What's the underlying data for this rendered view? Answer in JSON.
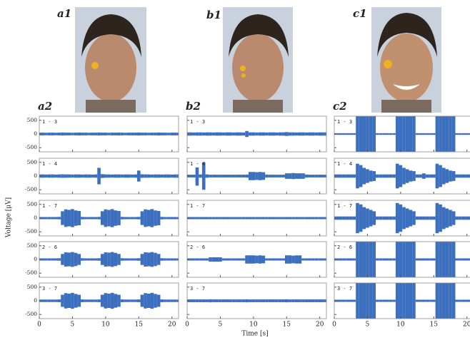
{
  "photo_labels": [
    "a1",
    "b1",
    "c1"
  ],
  "chart_data": [
    {
      "type": "line",
      "title": "a2",
      "ylabel": "Voltage [μV]",
      "xlim": [
        0,
        21
      ],
      "xticks": [
        0,
        5,
        10,
        15,
        20
      ],
      "ylim": [
        -650,
        650
      ],
      "yticks": [
        500,
        0,
        -500
      ],
      "x": [
        0,
        0.5,
        1,
        1.5,
        2,
        2.5,
        3,
        3.5,
        4,
        4.5,
        5,
        5.5,
        6,
        6.5,
        7,
        7.5,
        8,
        8.5,
        9,
        9.5,
        10,
        10.5,
        11,
        11.5,
        12,
        12.5,
        13,
        13.5,
        14,
        14.5,
        15,
        15.5,
        16,
        16.5,
        17,
        17.5,
        18,
        18.5,
        19,
        19.5,
        20,
        20.5,
        21
      ],
      "series": [
        {
          "name": "1 - 3",
          "color": "#3d6fbf",
          "values": [
            50,
            50,
            45,
            50,
            50,
            45,
            50,
            55,
            50,
            50,
            45,
            50,
            55,
            50,
            50,
            45,
            50,
            50,
            55,
            50,
            50,
            45,
            50,
            50,
            55,
            50,
            45,
            50,
            50,
            50,
            55,
            50,
            50,
            45,
            50,
            50,
            55,
            50,
            50,
            45,
            50,
            50,
            50
          ]
        },
        {
          "name": "1 - 4",
          "color": "#3d6fbf",
          "values": [
            60,
            60,
            55,
            60,
            60,
            55,
            60,
            65,
            60,
            60,
            55,
            60,
            60,
            55,
            60,
            60,
            55,
            60,
            300,
            70,
            60,
            60,
            55,
            60,
            60,
            55,
            60,
            60,
            55,
            60,
            200,
            65,
            60,
            60,
            55,
            60,
            60,
            55,
            60,
            60,
            55,
            60,
            60
          ]
        },
        {
          "name": "1 - 7",
          "color": "#3d6fbf",
          "values": [
            40,
            40,
            40,
            40,
            40,
            40,
            45,
            250,
            320,
            300,
            330,
            280,
            260,
            45,
            40,
            40,
            40,
            40,
            45,
            250,
            320,
            300,
            330,
            280,
            260,
            45,
            40,
            40,
            40,
            40,
            45,
            250,
            320,
            300,
            330,
            280,
            260,
            45,
            40,
            40,
            40,
            40,
            40
          ]
        },
        {
          "name": "2 - 6",
          "color": "#3d6fbf",
          "values": [
            40,
            40,
            40,
            40,
            40,
            40,
            45,
            200,
            260,
            250,
            270,
            240,
            200,
            45,
            40,
            40,
            40,
            40,
            45,
            200,
            260,
            250,
            270,
            240,
            200,
            45,
            40,
            40,
            40,
            40,
            45,
            200,
            260,
            250,
            270,
            240,
            200,
            45,
            40,
            40,
            40,
            40,
            40
          ]
        },
        {
          "name": "3 - 7",
          "color": "#3d6fbf",
          "values": [
            45,
            45,
            45,
            45,
            45,
            45,
            50,
            220,
            280,
            260,
            290,
            250,
            220,
            50,
            45,
            45,
            45,
            45,
            50,
            220,
            280,
            260,
            290,
            250,
            220,
            50,
            45,
            45,
            45,
            45,
            50,
            220,
            280,
            260,
            290,
            250,
            220,
            50,
            45,
            45,
            45,
            45,
            45
          ]
        }
      ]
    },
    {
      "type": "line",
      "title": "b2",
      "xlabel": "Time [s]",
      "xlim": [
        0,
        21
      ],
      "xticks": [
        0,
        5,
        10,
        15,
        20
      ],
      "ylim": [
        -650,
        650
      ],
      "yticks": [
        500,
        0,
        -500
      ],
      "x": [
        0,
        0.5,
        1,
        1.5,
        2,
        2.5,
        3,
        3.5,
        4,
        4.5,
        5,
        5.5,
        6,
        6.5,
        7,
        7.5,
        8,
        8.5,
        9,
        9.5,
        10,
        10.5,
        11,
        11.5,
        12,
        12.5,
        13,
        13.5,
        14,
        14.5,
        15,
        15.5,
        16,
        16.5,
        17,
        17.5,
        18,
        18.5,
        19,
        19.5,
        20,
        20.5,
        21
      ],
      "series": [
        {
          "name": "1 - 3",
          "color": "#3d6fbf",
          "values": [
            60,
            60,
            55,
            60,
            60,
            55,
            60,
            60,
            55,
            60,
            60,
            55,
            60,
            60,
            55,
            60,
            60,
            55,
            110,
            60,
            60,
            55,
            60,
            60,
            55,
            60,
            60,
            55,
            60,
            60,
            70,
            60,
            60,
            55,
            60,
            60,
            55,
            60,
            60,
            55,
            60,
            60,
            60
          ]
        },
        {
          "name": "1 - 4",
          "color": "#3d6fbf",
          "values": [
            50,
            50,
            50,
            350,
            60,
            500,
            60,
            50,
            50,
            50,
            50,
            50,
            50,
            50,
            50,
            50,
            50,
            50,
            55,
            150,
            150,
            140,
            150,
            140,
            55,
            50,
            50,
            50,
            50,
            50,
            100,
            100,
            110,
            100,
            100,
            100,
            55,
            50,
            50,
            50,
            50,
            50,
            50
          ]
        },
        {
          "name": "1 - 7",
          "color": "#3d6fbf",
          "values": [
            40,
            40,
            40,
            40,
            40,
            40,
            40,
            40,
            40,
            40,
            40,
            40,
            40,
            40,
            40,
            40,
            40,
            40,
            40,
            40,
            40,
            40,
            40,
            40,
            40,
            40,
            40,
            40,
            40,
            40,
            40,
            40,
            40,
            40,
            40,
            40,
            40,
            40,
            40,
            40,
            40,
            40,
            40
          ]
        },
        {
          "name": "2 - 6",
          "color": "#3d6fbf",
          "values": [
            40,
            40,
            40,
            40,
            40,
            40,
            40,
            80,
            80,
            80,
            80,
            40,
            40,
            40,
            40,
            40,
            40,
            40,
            150,
            150,
            150,
            140,
            150,
            140,
            40,
            40,
            40,
            40,
            40,
            40,
            150,
            150,
            140,
            150,
            150,
            40,
            40,
            40,
            40,
            40,
            40,
            40,
            40
          ]
        },
        {
          "name": "3 - 7",
          "color": "#3d6fbf",
          "values": [
            50,
            50,
            50,
            50,
            50,
            50,
            50,
            55,
            50,
            50,
            50,
            50,
            50,
            50,
            50,
            50,
            50,
            50,
            55,
            50,
            50,
            50,
            50,
            50,
            50,
            50,
            50,
            50,
            50,
            50,
            55,
            50,
            50,
            50,
            50,
            50,
            50,
            50,
            50,
            50,
            50,
            50,
            50
          ]
        }
      ]
    },
    {
      "type": "line",
      "title": "c2",
      "xlim": [
        0,
        21
      ],
      "xticks": [
        0,
        5,
        10,
        15,
        20
      ],
      "ylim": [
        -650,
        650
      ],
      "yticks": [
        500,
        0,
        -500
      ],
      "x": [
        0,
        0.5,
        1,
        1.5,
        2,
        2.5,
        3,
        3.5,
        4,
        4.5,
        5,
        5.5,
        6,
        6.5,
        7,
        7.5,
        8,
        8.5,
        9,
        9.5,
        10,
        10.5,
        11,
        11.5,
        12,
        12.5,
        13,
        13.5,
        14,
        14.5,
        15,
        15.5,
        16,
        16.5,
        17,
        17.5,
        18,
        18.5,
        19,
        19.5,
        20,
        20.5,
        21
      ],
      "series": [
        {
          "name": "1 - 3",
          "color": "#3d6fbf",
          "values": [
            30,
            30,
            30,
            30,
            30,
            30,
            30,
            700,
            700,
            700,
            700,
            700,
            700,
            30,
            30,
            30,
            30,
            30,
            30,
            700,
            700,
            700,
            700,
            700,
            700,
            30,
            30,
            30,
            30,
            30,
            30,
            700,
            700,
            700,
            700,
            700,
            700,
            30,
            30,
            30,
            30,
            30,
            30
          ]
        },
        {
          "name": "1 - 4",
          "color": "#3d6fbf",
          "values": [
            60,
            60,
            60,
            60,
            60,
            60,
            60,
            450,
            400,
            300,
            250,
            200,
            180,
            60,
            60,
            60,
            60,
            60,
            60,
            450,
            400,
            300,
            250,
            200,
            180,
            60,
            60,
            100,
            60,
            60,
            60,
            450,
            400,
            300,
            250,
            200,
            180,
            60,
            60,
            60,
            60,
            60,
            60
          ]
        },
        {
          "name": "1 - 7",
          "color": "#3d6fbf",
          "values": [
            60,
            60,
            60,
            60,
            60,
            60,
            60,
            550,
            500,
            400,
            350,
            300,
            250,
            60,
            60,
            60,
            60,
            60,
            60,
            550,
            500,
            400,
            350,
            300,
            250,
            60,
            60,
            60,
            60,
            60,
            60,
            550,
            500,
            400,
            350,
            300,
            250,
            60,
            60,
            60,
            60,
            60,
            60
          ]
        },
        {
          "name": "2 - 6",
          "color": "#3d6fbf",
          "values": [
            40,
            40,
            40,
            40,
            40,
            40,
            40,
            700,
            700,
            700,
            700,
            700,
            700,
            40,
            40,
            40,
            40,
            40,
            40,
            700,
            700,
            700,
            700,
            700,
            700,
            40,
            40,
            40,
            40,
            40,
            40,
            700,
            700,
            700,
            700,
            700,
            700,
            40,
            40,
            40,
            40,
            40,
            40
          ]
        },
        {
          "name": "3 - 7",
          "color": "#3d6fbf",
          "values": [
            40,
            40,
            40,
            40,
            40,
            40,
            40,
            700,
            700,
            700,
            700,
            700,
            700,
            40,
            40,
            40,
            40,
            40,
            40,
            700,
            700,
            700,
            700,
            700,
            700,
            40,
            40,
            40,
            40,
            40,
            40,
            700,
            700,
            700,
            700,
            700,
            700,
            40,
            40,
            40,
            40,
            40,
            40
          ]
        }
      ]
    }
  ]
}
